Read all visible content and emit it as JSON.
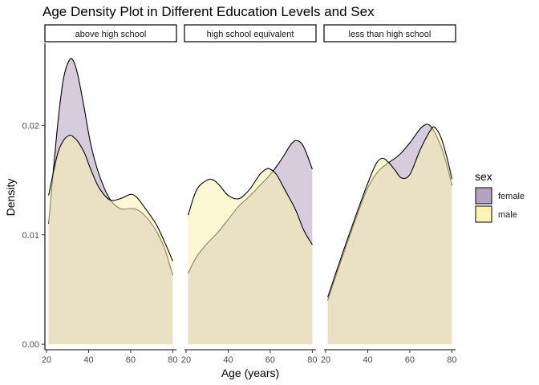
{
  "chart_data": {
    "type": "area",
    "title": "Age Density Plot in Different Education Levels and Sex",
    "xlabel": "Age (years)",
    "ylabel": "Density",
    "xlim": [
      20,
      81
    ],
    "ylim": [
      -0.0005,
      0.0275
    ],
    "xticks": [
      20,
      40,
      60,
      80
    ],
    "yticks": [
      0.0,
      0.01,
      0.02
    ],
    "ytick_labels": [
      "0.00",
      "0.01",
      "0.02"
    ],
    "grid": false,
    "legend": {
      "title": "sex",
      "position": "right"
    },
    "colors": {
      "female": "#b5a2bf",
      "male": "#fbf3b0",
      "overlap": "#d5c496"
    },
    "series_names": [
      "female",
      "male"
    ],
    "panels": [
      {
        "label": "above high school",
        "series": [
          {
            "name": "female",
            "x": [
              21,
              25,
              28,
              31,
              33,
              35,
              38,
              41,
              45,
              50,
              55,
              60,
              63,
              67,
              72,
              76,
              80
            ],
            "y": [
              0.011,
              0.0195,
              0.0242,
              0.026,
              0.0258,
              0.0245,
              0.0215,
              0.0183,
              0.0155,
              0.0133,
              0.0124,
              0.0124,
              0.0123,
              0.0117,
              0.0104,
              0.0088,
              0.0063
            ]
          },
          {
            "name": "male",
            "x": [
              21,
              25,
              28,
              31,
              33,
              35,
              38,
              41,
              45,
              50,
              55,
              60,
              63,
              67,
              72,
              76,
              80
            ],
            "y": [
              0.0136,
              0.0172,
              0.0186,
              0.0191,
              0.0189,
              0.0185,
              0.0175,
              0.016,
              0.0143,
              0.0132,
              0.0133,
              0.0137,
              0.0134,
              0.0124,
              0.011,
              0.0094,
              0.0076
            ]
          }
        ]
      },
      {
        "label": "high school equivalent",
        "series": [
          {
            "name": "female",
            "x": [
              21,
              25,
              30,
              35,
              40,
              45,
              50,
              55,
              60,
              65,
              70,
              73,
              76,
              80
            ],
            "y": [
              0.0065,
              0.008,
              0.0092,
              0.0102,
              0.0114,
              0.0126,
              0.0135,
              0.0145,
              0.0155,
              0.0168,
              0.0183,
              0.0186,
              0.018,
              0.016
            ]
          },
          {
            "name": "male",
            "x": [
              21,
              25,
              30,
              33,
              36,
              40,
              45,
              50,
              55,
              58,
              60,
              63,
              67,
              72,
              76,
              80
            ],
            "y": [
              0.0118,
              0.0141,
              0.015,
              0.015,
              0.0145,
              0.0136,
              0.0133,
              0.0141,
              0.0155,
              0.016,
              0.016,
              0.0155,
              0.0141,
              0.0123,
              0.0104,
              0.0091
            ]
          }
        ]
      },
      {
        "label": "less than high school",
        "series": [
          {
            "name": "female",
            "x": [
              21,
              25,
              30,
              35,
              40,
              45,
              50,
              55,
              60,
              65,
              68,
              70,
              72,
              75,
              78,
              80
            ],
            "y": [
              0.004,
              0.0063,
              0.0091,
              0.0118,
              0.0143,
              0.0158,
              0.0166,
              0.0173,
              0.0184,
              0.0197,
              0.0201,
              0.0199,
              0.0193,
              0.018,
              0.0161,
              0.0145
            ]
          },
          {
            "name": "male",
            "x": [
              21,
              25,
              30,
              35,
              40,
              44,
              47,
              50,
              53,
              56,
              60,
              65,
              70,
              72,
              75,
              78,
              80
            ],
            "y": [
              0.0043,
              0.0066,
              0.0094,
              0.0121,
              0.0147,
              0.0165,
              0.017,
              0.0166,
              0.0159,
              0.0152,
              0.0155,
              0.0178,
              0.0196,
              0.0198,
              0.0188,
              0.0168,
              0.0151
            ]
          }
        ]
      }
    ]
  }
}
